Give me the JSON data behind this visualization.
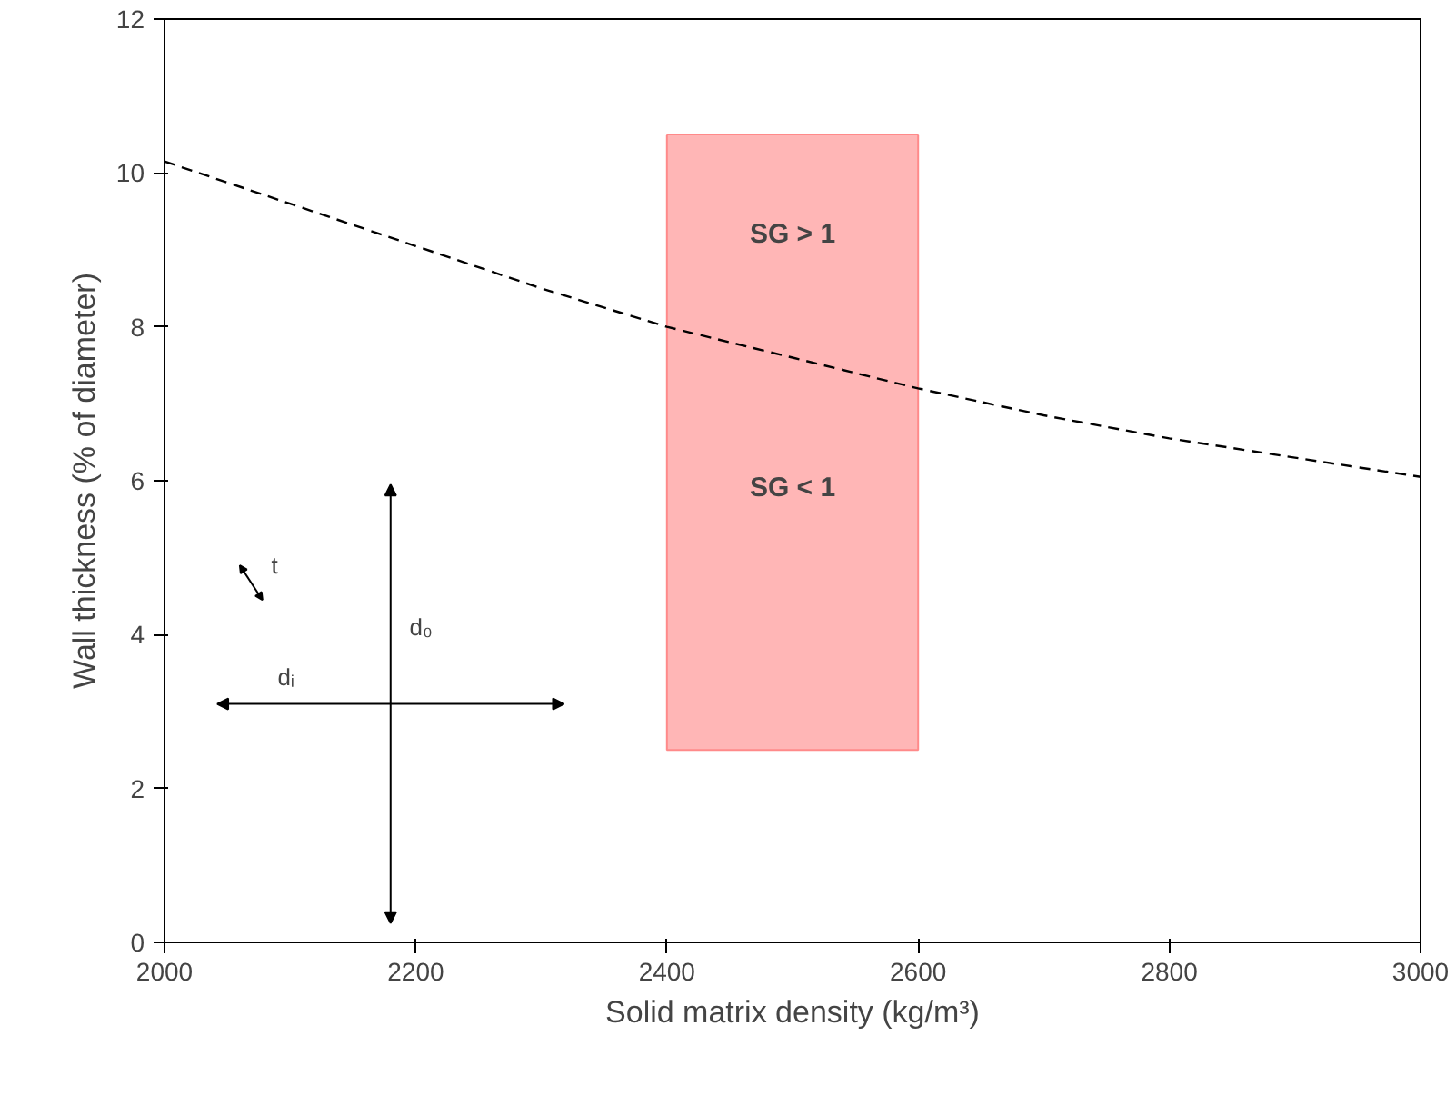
{
  "chart_data": {
    "type": "line",
    "xlabel": "Solid matrix density (kg/m³)",
    "ylabel": "Wall thickness (% of diameter)",
    "xlim": [
      2000,
      3000
    ],
    "xticks": [
      2000,
      2200,
      2400,
      2600,
      2800,
      3000
    ],
    "ylim": [
      0,
      12
    ],
    "yticks": [
      0,
      2,
      4,
      6,
      8,
      10,
      12
    ],
    "grid": false,
    "series": [
      {
        "color": "#000000",
        "line_style": "dashed",
        "x": [
          2000,
          2100,
          2200,
          2300,
          2400,
          2500,
          2600,
          2700,
          2800,
          2900,
          3000
        ],
        "values": [
          10.15,
          9.6,
          9.05,
          8.5,
          8.0,
          7.6,
          7.2,
          6.85,
          6.55,
          6.3,
          6.05
        ]
      },
      {
        "type": "bar",
        "color": "#ffb6b6",
        "x": [
          2500
        ],
        "base": [
          2.5
        ],
        "values": [
          8.0
        ]
      }
    ],
    "annotations": [
      "SG > 1",
      "SG < 1",
      "t",
      "d₀",
      "dᵢ"
    ]
  }
}
